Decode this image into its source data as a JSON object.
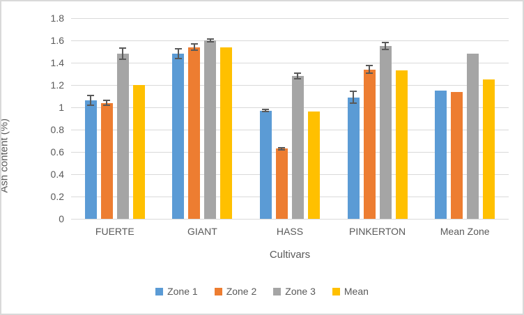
{
  "chart_data": {
    "type": "bar",
    "title": "",
    "xlabel": "Cultivars",
    "ylabel": "Ash content (%)",
    "categories": [
      "FUERTE",
      "GIANT",
      "HASS",
      "PINKERTON",
      "Mean Zone"
    ],
    "series": [
      {
        "name": "Zone 1",
        "color": "#5B9BD5",
        "values": [
          1.06,
          1.48,
          0.97,
          1.09,
          1.15
        ],
        "errors": [
          0.05,
          0.05,
          0.015,
          0.06,
          0
        ]
      },
      {
        "name": "Zone 2",
        "color": "#ED7D31",
        "values": [
          1.04,
          1.54,
          0.63,
          1.34,
          1.14
        ],
        "errors": [
          0.03,
          0.035,
          0.015,
          0.04,
          0
        ]
      },
      {
        "name": "Zone 3",
        "color": "#A5A5A5",
        "values": [
          1.48,
          1.6,
          1.28,
          1.55,
          1.48
        ],
        "errors": [
          0.055,
          0.02,
          0.03,
          0.04,
          0
        ]
      },
      {
        "name": "Mean",
        "color": "#FFC000",
        "values": [
          1.2,
          1.54,
          0.96,
          1.33,
          1.25
        ],
        "errors": [
          0,
          0,
          0,
          0,
          0
        ]
      }
    ],
    "y_ticks": [
      "0",
      "0.2",
      "0.4",
      "0.6",
      "0.8",
      "1",
      "1.2",
      "1.4",
      "1.6",
      "1.8"
    ],
    "y_tick_values": [
      0,
      0.2,
      0.4,
      0.6,
      0.8,
      1.0,
      1.2,
      1.4,
      1.6,
      1.8
    ],
    "ylim": [
      0,
      1.8
    ],
    "grid": true,
    "legend_position": "bottom",
    "colors": {
      "gridline": "#D9D9D9",
      "error_bar": "#595959",
      "axis_text": "#595959",
      "border": "#D9D9D9",
      "background": "#FFFFFF"
    }
  }
}
